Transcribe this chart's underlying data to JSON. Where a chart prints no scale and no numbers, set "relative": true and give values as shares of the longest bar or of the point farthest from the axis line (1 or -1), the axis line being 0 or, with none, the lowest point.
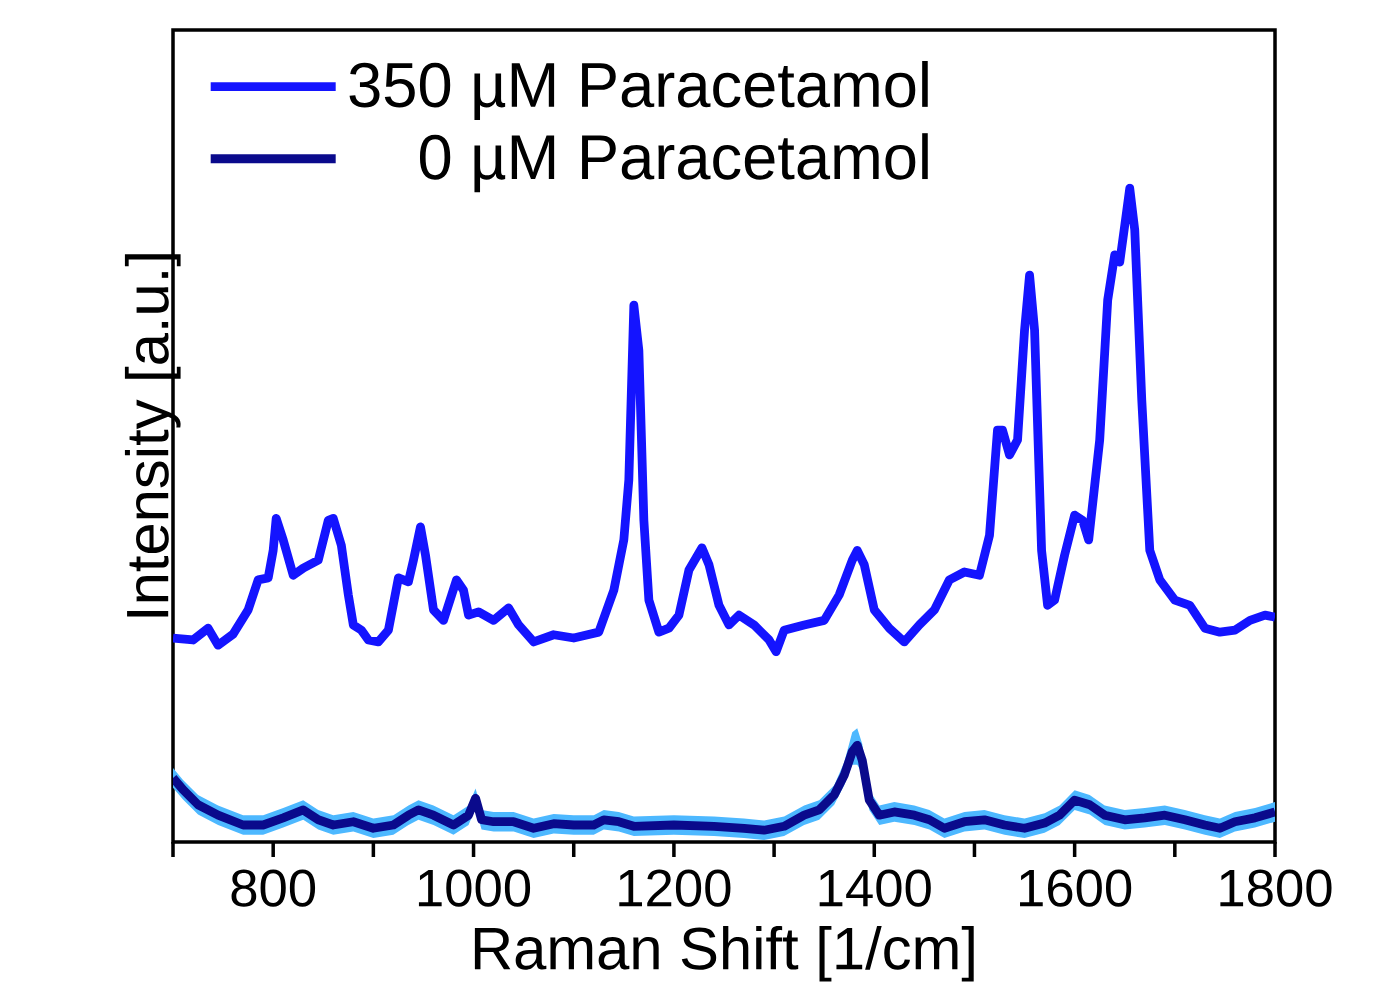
{
  "chart_data": {
    "type": "line",
    "relative": true,
    "xlabel": "Raman Shift [1/cm]",
    "ylabel": "Intensity [a.u.]",
    "xlim": [
      700,
      1800
    ],
    "xticks": [
      {
        "value": 700,
        "label": null
      },
      800,
      {
        "value": 900,
        "label": null
      },
      1000,
      {
        "value": 1100,
        "label": null
      },
      1200,
      {
        "value": 1300,
        "label": null
      },
      1400,
      {
        "value": 1500,
        "label": null
      },
      1600,
      {
        "value": 1700,
        "label": null
      },
      1800
    ],
    "legend": "top left",
    "grid": false,
    "marker": "none",
    "line_style": "solid",
    "series": [
      {
        "name": "350 µM Paracetamol",
        "color": "#1414ff",
        "x": [
          700,
          720,
          735,
          745,
          760,
          775,
          785,
          795,
          800,
          803,
          810,
          820,
          830,
          845,
          855,
          860,
          868,
          875,
          880,
          888,
          895,
          905,
          915,
          925,
          935,
          940,
          947,
          952,
          960,
          970,
          983,
          990,
          995,
          1005,
          1020,
          1035,
          1045,
          1060,
          1080,
          1100,
          1125,
          1140,
          1150,
          1155,
          1160,
          1165,
          1170,
          1175,
          1185,
          1195,
          1205,
          1215,
          1228,
          1235,
          1245,
          1255,
          1265,
          1280,
          1295,
          1302,
          1310,
          1330,
          1350,
          1365,
          1378,
          1383,
          1390,
          1400,
          1415,
          1430,
          1445,
          1460,
          1475,
          1490,
          1505,
          1515,
          1523,
          1528,
          1535,
          1543,
          1550,
          1555,
          1560,
          1567,
          1573,
          1580,
          1590,
          1600,
          1608,
          1614,
          1625,
          1633,
          1640,
          1645,
          1650,
          1655,
          1660,
          1667,
          1675,
          1685,
          1700,
          1715,
          1730,
          1745,
          1760,
          1775,
          1790,
          1800
        ],
        "values": [
          0.312,
          0.309,
          0.327,
          0.301,
          0.318,
          0.355,
          0.401,
          0.404,
          0.446,
          0.495,
          0.462,
          0.408,
          0.419,
          0.431,
          0.492,
          0.495,
          0.454,
          0.378,
          0.332,
          0.324,
          0.309,
          0.306,
          0.324,
          0.404,
          0.398,
          0.431,
          0.482,
          0.439,
          0.355,
          0.339,
          0.401,
          0.385,
          0.347,
          0.352,
          0.339,
          0.358,
          0.332,
          0.306,
          0.317,
          0.312,
          0.321,
          0.385,
          0.462,
          0.554,
          0.821,
          0.752,
          0.492,
          0.37,
          0.321,
          0.327,
          0.347,
          0.416,
          0.45,
          0.424,
          0.362,
          0.332,
          0.347,
          0.332,
          0.309,
          0.291,
          0.324,
          0.332,
          0.339,
          0.378,
          0.431,
          0.446,
          0.424,
          0.355,
          0.327,
          0.306,
          0.332,
          0.355,
          0.401,
          0.413,
          0.408,
          0.469,
          0.63,
          0.63,
          0.592,
          0.615,
          0.783,
          0.867,
          0.783,
          0.446,
          0.362,
          0.37,
          0.439,
          0.5,
          0.492,
          0.462,
          0.615,
          0.829,
          0.898,
          0.887,
          0.943,
          1.0,
          0.936,
          0.676,
          0.446,
          0.401,
          0.37,
          0.362,
          0.327,
          0.321,
          0.324,
          0.339,
          0.347,
          0.344
        ]
      },
      {
        "name": "0 µM Paracetamol",
        "color": "#0a0a8c",
        "x": [
          700,
          710,
          725,
          745,
          770,
          790,
          810,
          830,
          845,
          860,
          880,
          900,
          920,
          935,
          945,
          960,
          980,
          995,
          1002,
          1008,
          1020,
          1040,
          1060,
          1080,
          1100,
          1120,
          1130,
          1145,
          1160,
          1200,
          1240,
          1270,
          1290,
          1310,
          1330,
          1345,
          1360,
          1370,
          1378,
          1383,
          1388,
          1395,
          1405,
          1420,
          1440,
          1455,
          1470,
          1490,
          1510,
          1530,
          1550,
          1570,
          1585,
          1600,
          1615,
          1630,
          1650,
          1670,
          1690,
          1710,
          1730,
          1745,
          1760,
          1780,
          1800
        ],
        "values": [
          0.098,
          0.08,
          0.057,
          0.041,
          0.026,
          0.026,
          0.037,
          0.049,
          0.034,
          0.026,
          0.031,
          0.021,
          0.026,
          0.041,
          0.049,
          0.041,
          0.026,
          0.041,
          0.067,
          0.034,
          0.031,
          0.031,
          0.021,
          0.028,
          0.026,
          0.026,
          0.034,
          0.031,
          0.024,
          0.026,
          0.024,
          0.021,
          0.018,
          0.024,
          0.041,
          0.049,
          0.072,
          0.102,
          0.138,
          0.148,
          0.125,
          0.064,
          0.041,
          0.046,
          0.041,
          0.034,
          0.021,
          0.031,
          0.034,
          0.026,
          0.021,
          0.029,
          0.041,
          0.064,
          0.057,
          0.041,
          0.034,
          0.037,
          0.041,
          0.034,
          0.026,
          0.021,
          0.031,
          0.037,
          0.046
        ],
        "lower": [
          0.083,
          0.065,
          0.042,
          0.026,
          0.011,
          0.011,
          0.022,
          0.034,
          0.019,
          0.011,
          0.016,
          0.006,
          0.011,
          0.026,
          0.034,
          0.026,
          0.011,
          0.026,
          0.052,
          0.019,
          0.016,
          0.016,
          0.006,
          0.013,
          0.011,
          0.011,
          0.019,
          0.016,
          0.009,
          0.011,
          0.009,
          0.006,
          0.003,
          0.009,
          0.026,
          0.034,
          0.057,
          0.087,
          0.118,
          0.118,
          0.105,
          0.049,
          0.026,
          0.031,
          0.026,
          0.019,
          0.006,
          0.016,
          0.019,
          0.011,
          0.006,
          0.014,
          0.026,
          0.049,
          0.042,
          0.026,
          0.019,
          0.022,
          0.026,
          0.019,
          0.011,
          0.006,
          0.016,
          0.022,
          0.031
        ],
        "upper": [
          0.113,
          0.095,
          0.072,
          0.056,
          0.041,
          0.041,
          0.052,
          0.064,
          0.049,
          0.041,
          0.046,
          0.036,
          0.041,
          0.056,
          0.064,
          0.056,
          0.041,
          0.056,
          0.082,
          0.049,
          0.046,
          0.046,
          0.036,
          0.043,
          0.041,
          0.041,
          0.049,
          0.046,
          0.039,
          0.041,
          0.039,
          0.036,
          0.033,
          0.039,
          0.056,
          0.064,
          0.087,
          0.122,
          0.168,
          0.174,
          0.15,
          0.079,
          0.056,
          0.061,
          0.056,
          0.049,
          0.036,
          0.046,
          0.049,
          0.041,
          0.036,
          0.044,
          0.056,
          0.079,
          0.072,
          0.056,
          0.049,
          0.052,
          0.056,
          0.049,
          0.041,
          0.036,
          0.046,
          0.052,
          0.061
        ]
      }
    ]
  }
}
